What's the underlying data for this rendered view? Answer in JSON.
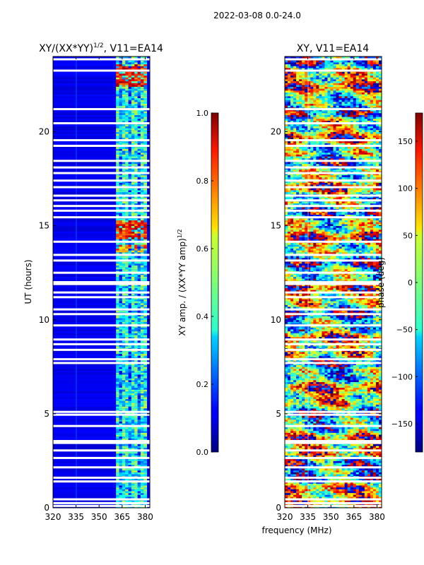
{
  "figure": {
    "suptitle": "2022-03-08 0.0-24.0",
    "xlabel_shared": "frequency (MHz)"
  },
  "chart_data": [
    {
      "type": "heatmap",
      "title_main": "XY/(XX*YY)",
      "title_sup": "1/2",
      "title_tail": ", V11=EA14",
      "ylabel": "UT (hours)",
      "x_ticks": [
        "320",
        "335",
        "350",
        "365",
        "380"
      ],
      "x_tick_values": [
        320,
        335,
        350,
        365,
        380
      ],
      "xlim": [
        320,
        383
      ],
      "y_ticks": [
        "0",
        "5",
        "10",
        "15",
        "20"
      ],
      "y_tick_values": [
        0,
        5,
        10,
        15,
        20
      ],
      "ylim": [
        0,
        24
      ],
      "colorbar": {
        "label_main": "XY amp. / (XX*YY amp)",
        "label_sup": "1/2",
        "ticks": [
          "0.0",
          "0.2",
          "0.4",
          "0.6",
          "0.8",
          "1.0"
        ],
        "tick_values": [
          0.0,
          0.2,
          0.4,
          0.6,
          0.8,
          1.0
        ],
        "range": [
          0.0,
          1.0
        ],
        "colormap": "jet"
      },
      "description_values": {
        "background_level": 0.1,
        "active_band_mhz": [
          361,
          381
        ],
        "active_band_level": 0.4,
        "hot_spots": [
          {
            "ut_range": [
              22.4,
              23.6
            ],
            "freq_mhz": [
              362,
              380
            ],
            "level": 0.85
          },
          {
            "ut_range": [
              14.3,
              15.3
            ],
            "freq_mhz": [
              362,
              380
            ],
            "level": 0.85
          },
          {
            "ut_range": [
              13.6,
              14.0
            ],
            "freq_mhz": [
              362,
              380
            ],
            "level": 0.75
          }
        ]
      },
      "flagged_ut_gaps": [
        0.1,
        0.25,
        0.45,
        1.4,
        1.6,
        2.15,
        2.65,
        3.05,
        3.45,
        3.55,
        4.35,
        4.95,
        5.1,
        7.7,
        7.9,
        8.4,
        8.7,
        8.95,
        9.7,
        10.3,
        10.55,
        11.2,
        11.45,
        11.9,
        12.0,
        12.5,
        13.15,
        13.45,
        14.15,
        15.45,
        15.8,
        16.05,
        16.35,
        16.6,
        17.05,
        17.4,
        17.8,
        18.1,
        18.45,
        19.25,
        19.55,
        20.45,
        21.2,
        23.25,
        23.85
      ]
    },
    {
      "type": "heatmap",
      "title": "XY, V11=EA14",
      "ylabel": "",
      "x_ticks": [
        "320",
        "335",
        "350",
        "365",
        "380"
      ],
      "x_tick_values": [
        320,
        335,
        350,
        365,
        380
      ],
      "xlim": [
        320,
        383
      ],
      "y_ticks": [
        "0",
        "5",
        "10",
        "15",
        "20"
      ],
      "y_tick_values": [
        0,
        5,
        10,
        15,
        20
      ],
      "ylim": [
        0,
        24
      ],
      "colorbar": {
        "label": "phase (deg)",
        "ticks": [
          "−150",
          "−100",
          "−50",
          "0",
          "50",
          "100",
          "150"
        ],
        "tick_values": [
          -150,
          -100,
          -50,
          0,
          50,
          100,
          150
        ],
        "range": [
          -180,
          180
        ],
        "colormap": "jet"
      },
      "flagged_ut_gaps": [
        0.1,
        0.25,
        0.45,
        1.4,
        1.6,
        2.15,
        2.65,
        3.05,
        3.45,
        3.55,
        4.35,
        4.95,
        5.1,
        7.7,
        7.9,
        8.4,
        8.7,
        8.95,
        9.7,
        10.3,
        10.55,
        11.2,
        11.45,
        11.9,
        12.0,
        12.5,
        13.15,
        13.45,
        14.15,
        15.45,
        15.8,
        16.05,
        16.35,
        16.6,
        17.05,
        17.4,
        17.8,
        18.1,
        18.45,
        19.25,
        19.55,
        20.45,
        21.2,
        23.25,
        23.85
      ]
    }
  ]
}
